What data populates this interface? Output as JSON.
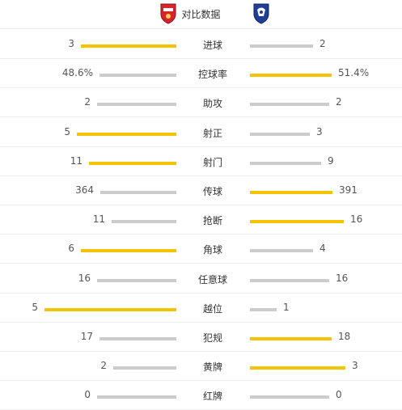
{
  "header": {
    "title": "对比数据",
    "home_logo_icon": "home-team-crest-icon",
    "away_logo_icon": "away-team-crest-icon"
  },
  "colors": {
    "leader": "#f5c400",
    "trailer": "#cccccc"
  },
  "stats": [
    {
      "label": "进球",
      "home": "3",
      "away": "2"
    },
    {
      "label": "控球率",
      "home": "48.6%",
      "away": "51.4%"
    },
    {
      "label": "助攻",
      "home": "2",
      "away": "2"
    },
    {
      "label": "射正",
      "home": "5",
      "away": "3"
    },
    {
      "label": "射门",
      "home": "11",
      "away": "9"
    },
    {
      "label": "传球",
      "home": "364",
      "away": "391"
    },
    {
      "label": "抢断",
      "home": "11",
      "away": "16"
    },
    {
      "label": "角球",
      "home": "6",
      "away": "4"
    },
    {
      "label": "任意球",
      "home": "16",
      "away": "16"
    },
    {
      "label": "越位",
      "home": "5",
      "away": "1"
    },
    {
      "label": "犯规",
      "home": "17",
      "away": "18"
    },
    {
      "label": "黄牌",
      "home": "2",
      "away": "3"
    },
    {
      "label": "红牌",
      "home": "0",
      "away": "0"
    }
  ]
}
